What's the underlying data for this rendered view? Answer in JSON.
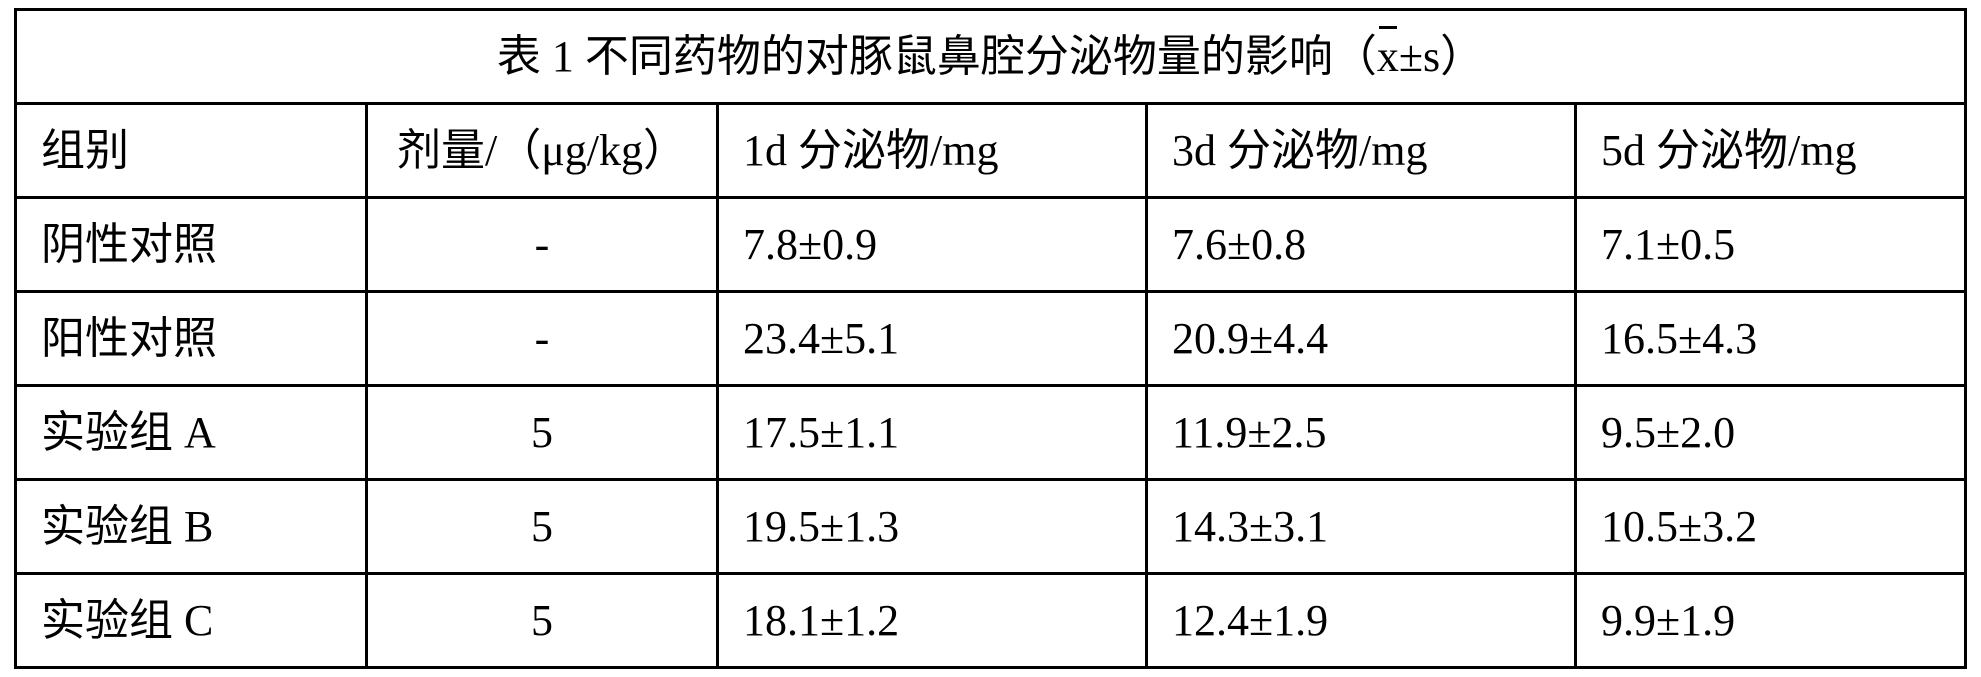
{
  "table": {
    "title_prefix": "表 1  不同药物的对豚鼠鼻腔分泌物量的影响（",
    "title_x": "x",
    "title_pm": "±s）",
    "columns": [
      "组别",
      "剂量/（μg/kg）",
      "1d 分泌物/mg",
      "3d 分泌物/mg",
      "5d 分泌物/mg"
    ],
    "col_align": [
      "left",
      "center",
      "left",
      "left",
      "left"
    ],
    "rows": [
      {
        "cells": [
          "阴性对照",
          "-",
          "7.8±0.9",
          "7.6±0.8",
          "7.1±0.5"
        ]
      },
      {
        "cells": [
          "阳性对照",
          "-",
          "23.4±5.1",
          "20.9±4.4",
          "16.5±4.3"
        ]
      },
      {
        "cells": [
          "实验组 A",
          "5",
          "17.5±1.1",
          "11.9±2.5",
          "9.5±2.0"
        ]
      },
      {
        "cells": [
          "实验组 B",
          "5",
          "19.5±1.3",
          "14.3±3.1",
          "10.5±3.2"
        ]
      },
      {
        "cells": [
          "实验组 C",
          "5",
          "18.1±1.2",
          "12.4±1.9",
          "9.9±1.9"
        ]
      }
    ],
    "border_color": "#000000",
    "background_color": "#ffffff",
    "text_color": "#000000",
    "font_size_pt": 33
  }
}
